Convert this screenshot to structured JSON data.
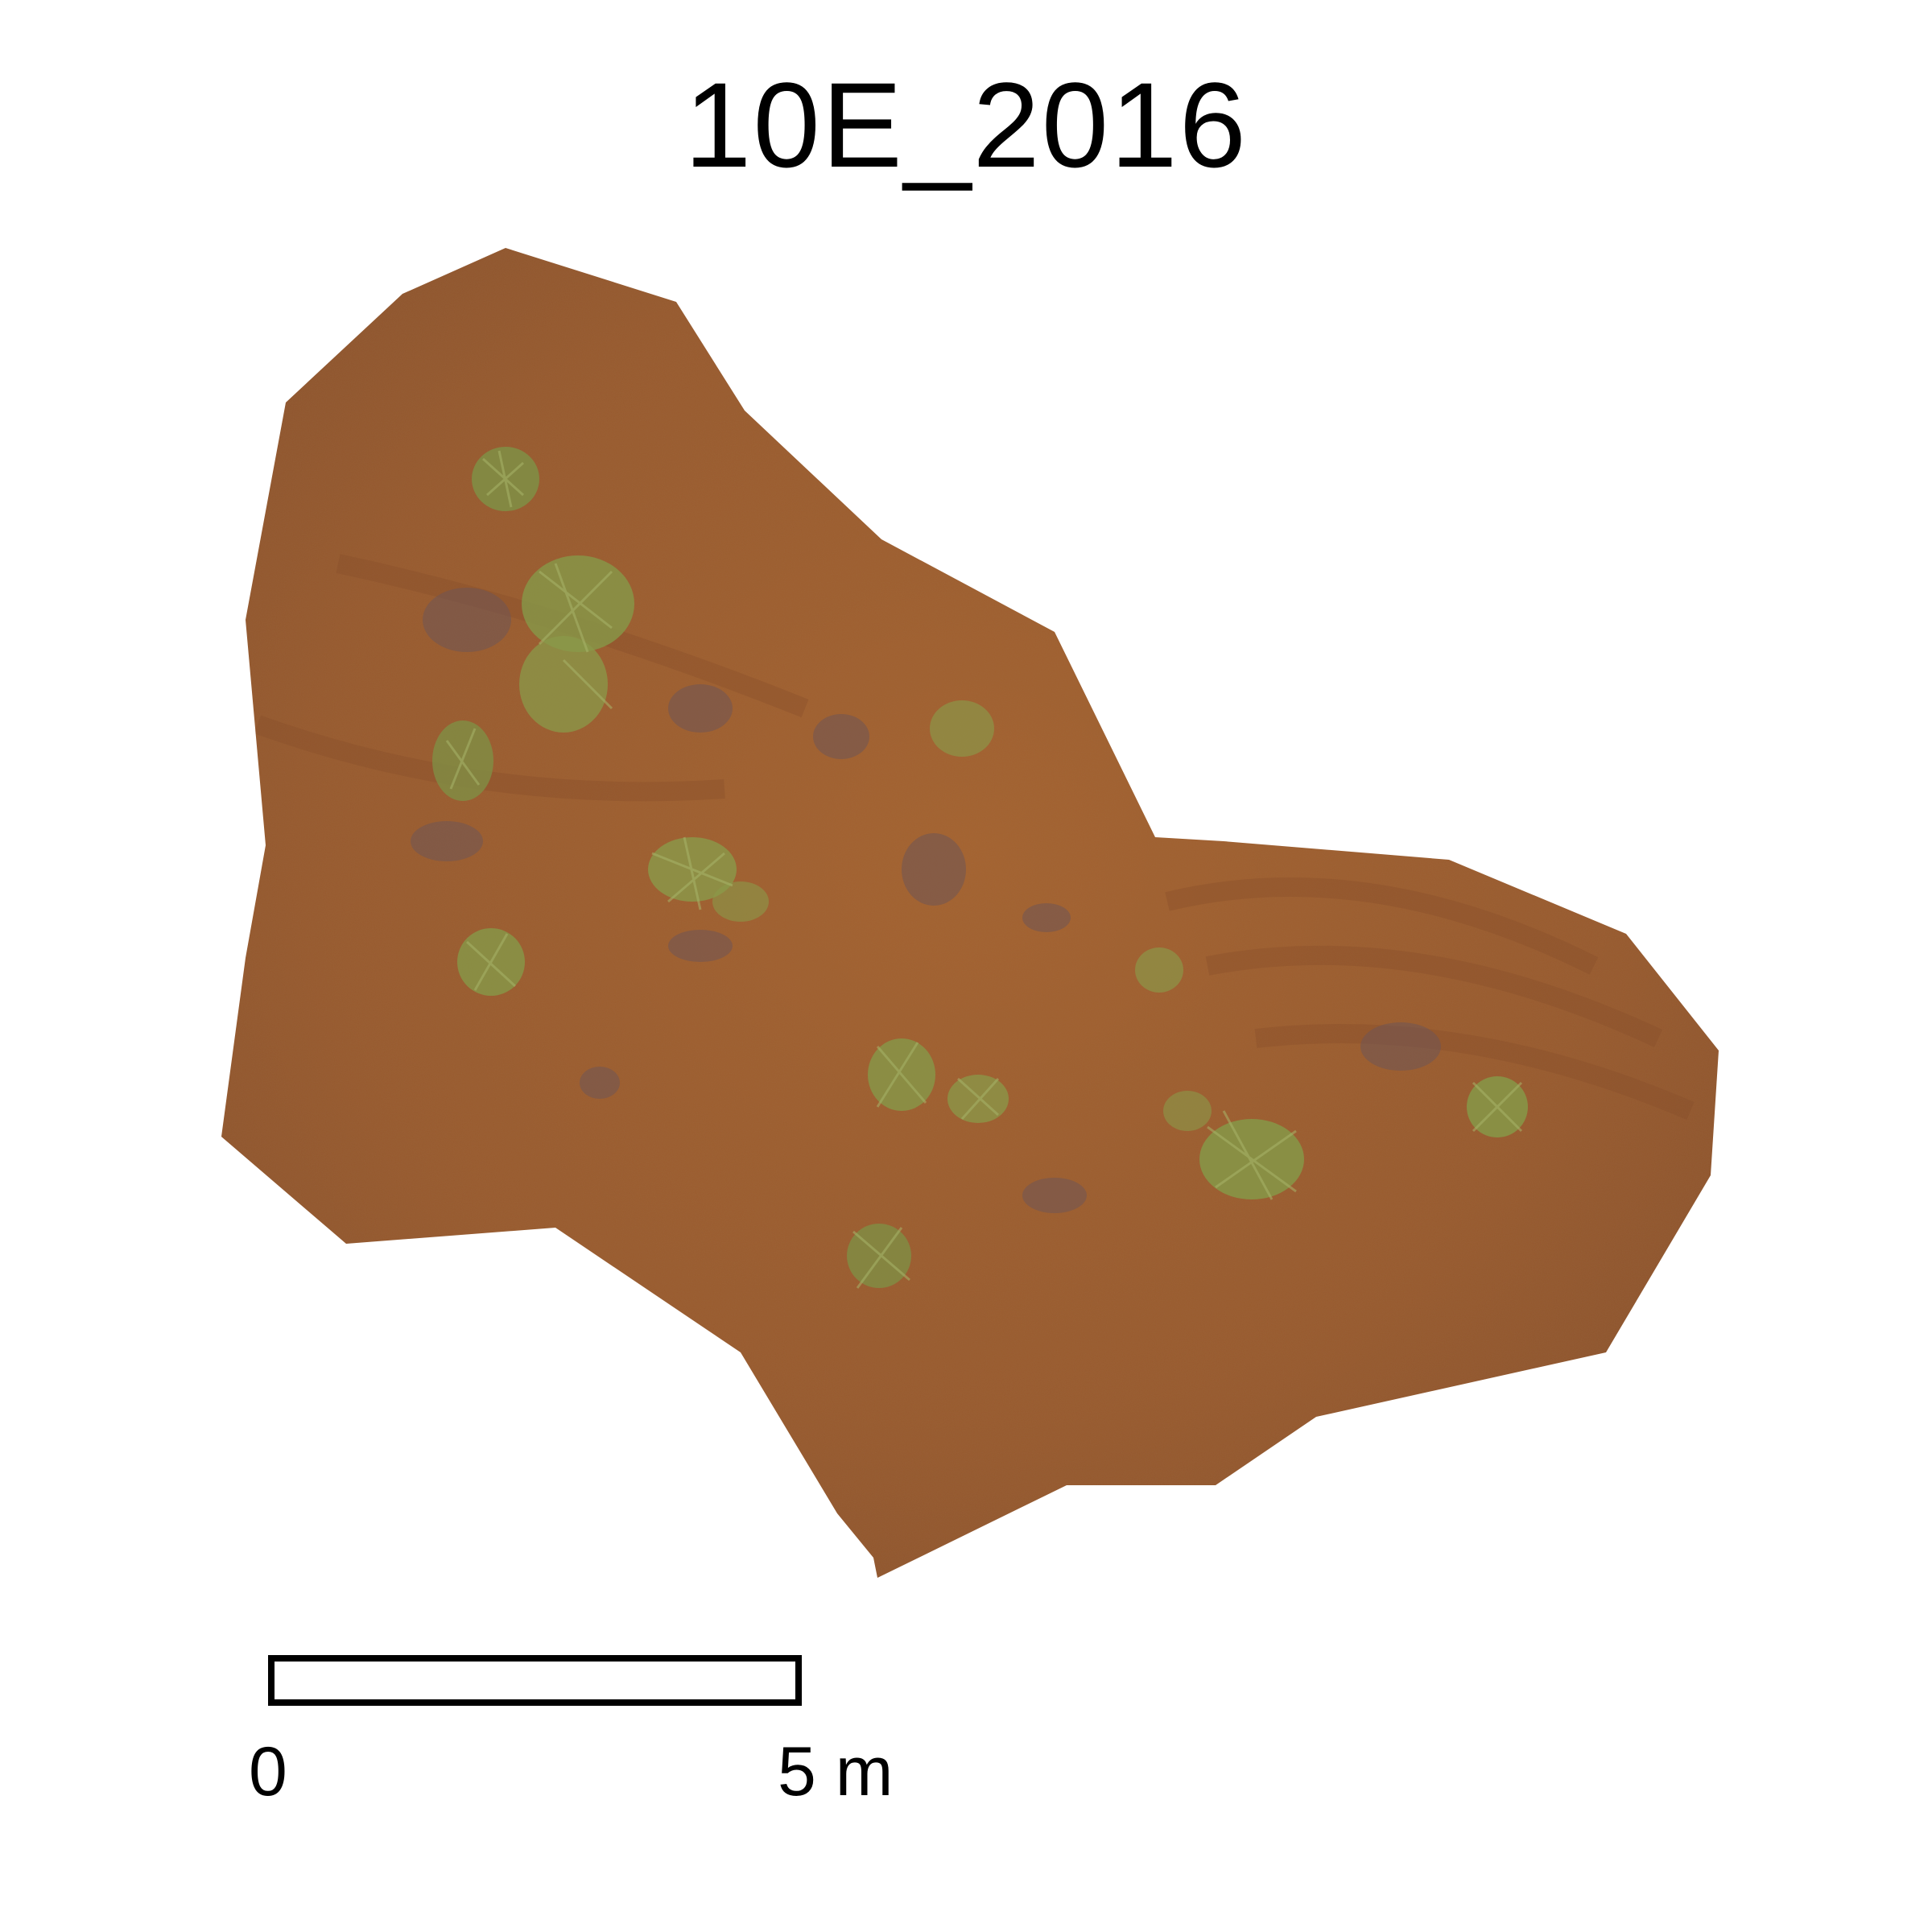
{
  "map": {
    "title": "10E_2016",
    "colors": {
      "soil": "#9a5a2e",
      "soil_dark": "#7d4a2a",
      "soil_light": "#a8683a",
      "vegetation": "#8a9a4a",
      "vegetation_dark": "#6d7f3c",
      "litter": "#7a5a5a",
      "background": "#ffffff"
    }
  },
  "scale_bar": {
    "start_label": "0",
    "end_label": "5 m"
  }
}
